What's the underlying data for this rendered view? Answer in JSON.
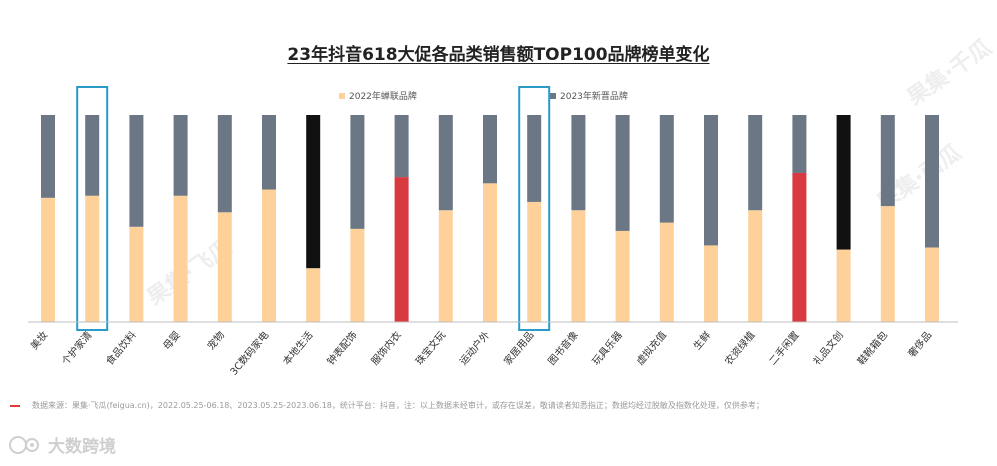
{
  "chart_data": {
    "type": "bar",
    "stacked": true,
    "title": "23年抖音618大促各品类销售额TOP100品牌榜单变化",
    "series": [
      {
        "name": "2022年蝉联品牌",
        "color": "#FDD199"
      },
      {
        "name": "2023年新晋品牌",
        "color": "#6B7785"
      }
    ],
    "categories": [
      "美妆",
      "个护家清",
      "食品饮料",
      "母婴",
      "宠物",
      "3C数码家电",
      "本地生活",
      "钟表配饰",
      "服饰内衣",
      "珠宝文玩",
      "运动户外",
      "家居用品",
      "图书音像",
      "玩具乐器",
      "虚拟充值",
      "生鲜",
      "农资绿植",
      "二手闲置",
      "礼品文创",
      "鞋靴箱包",
      "奢侈品"
    ],
    "retained": [
      60,
      61,
      46,
      61,
      53,
      64,
      26,
      45,
      70,
      54,
      67,
      58,
      54,
      44,
      48,
      37,
      54,
      72,
      35,
      56,
      36
    ],
    "new": [
      40,
      39,
      54,
      39,
      47,
      36,
      74,
      55,
      30,
      46,
      33,
      42,
      46,
      56,
      52,
      63,
      46,
      28,
      65,
      44,
      64
    ],
    "retained_colors": [
      "#FDD199",
      "#FDD199",
      "#FDD199",
      "#FDD199",
      "#FDD199",
      "#FDD199",
      "#FDD199",
      "#FDD199",
      "#D93A3F",
      "#FDD199",
      "#FDD199",
      "#FDD199",
      "#FDD199",
      "#FDD199",
      "#FDD199",
      "#FDD199",
      "#FDD199",
      "#D93A3F",
      "#FDD199",
      "#FDD199",
      "#FDD199"
    ],
    "new_colors": [
      "#6B7785",
      "#6B7785",
      "#6B7785",
      "#6B7785",
      "#6B7785",
      "#6B7785",
      "#111111",
      "#6B7785",
      "#6B7785",
      "#6B7785",
      "#6B7785",
      "#6B7785",
      "#6B7785",
      "#6B7785",
      "#6B7785",
      "#6B7785",
      "#6B7785",
      "#6B7785",
      "#111111",
      "#6B7785",
      "#6B7785"
    ],
    "highlighted": [
      "个护家清",
      "家居用品"
    ],
    "highlight_color": "#2A9BC7",
    "ylim": [
      0,
      100
    ],
    "legend_position": "top-center"
  },
  "footnote": "数据来源：果集·飞瓜(feigua.cn)，2022.05.25-06.18、2023.05.25-2023.06.18，统计平台：抖音，注：以上数据未经审计，或存在误差，敬请读者知悉指正；数据均经过脱敏及指数化处理，仅供参考；",
  "logo_text": "大数跨境",
  "watermark_text": "果集·飞瓜",
  "watermark_text_2": "果集·西瓜",
  "watermark_text_3": "果集·千瓜"
}
